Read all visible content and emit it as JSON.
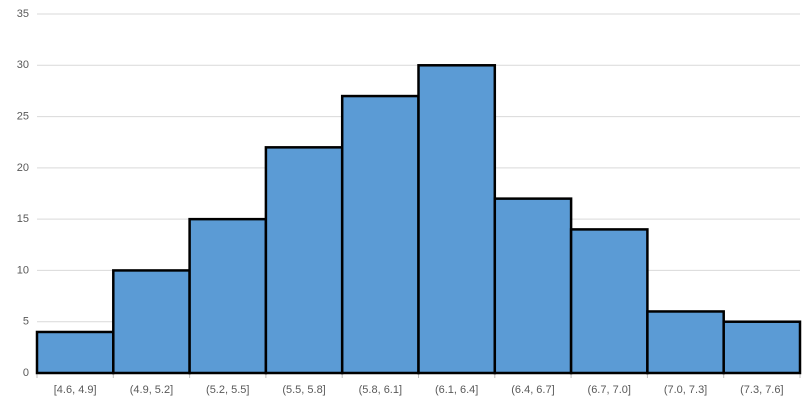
{
  "chart_data": {
    "type": "bar",
    "categories": [
      "[4.6, 4.9]",
      "(4.9, 5.2]",
      "(5.2, 5.5]",
      "(5.5, 5.8]",
      "(5.8, 6.1]",
      "(6.1, 6.4]",
      "(6.4, 6.7]",
      "(6.7, 7.0]",
      "(7.0, 7.3]",
      "(7.3, 7.6]"
    ],
    "values": [
      4,
      10,
      15,
      22,
      27,
      30,
      17,
      14,
      6,
      5
    ],
    "color": "#5b9bd5",
    "ylim": [
      0,
      35
    ],
    "yticks": [
      0,
      5,
      10,
      15,
      20,
      25,
      30,
      35
    ],
    "grid": true
  }
}
